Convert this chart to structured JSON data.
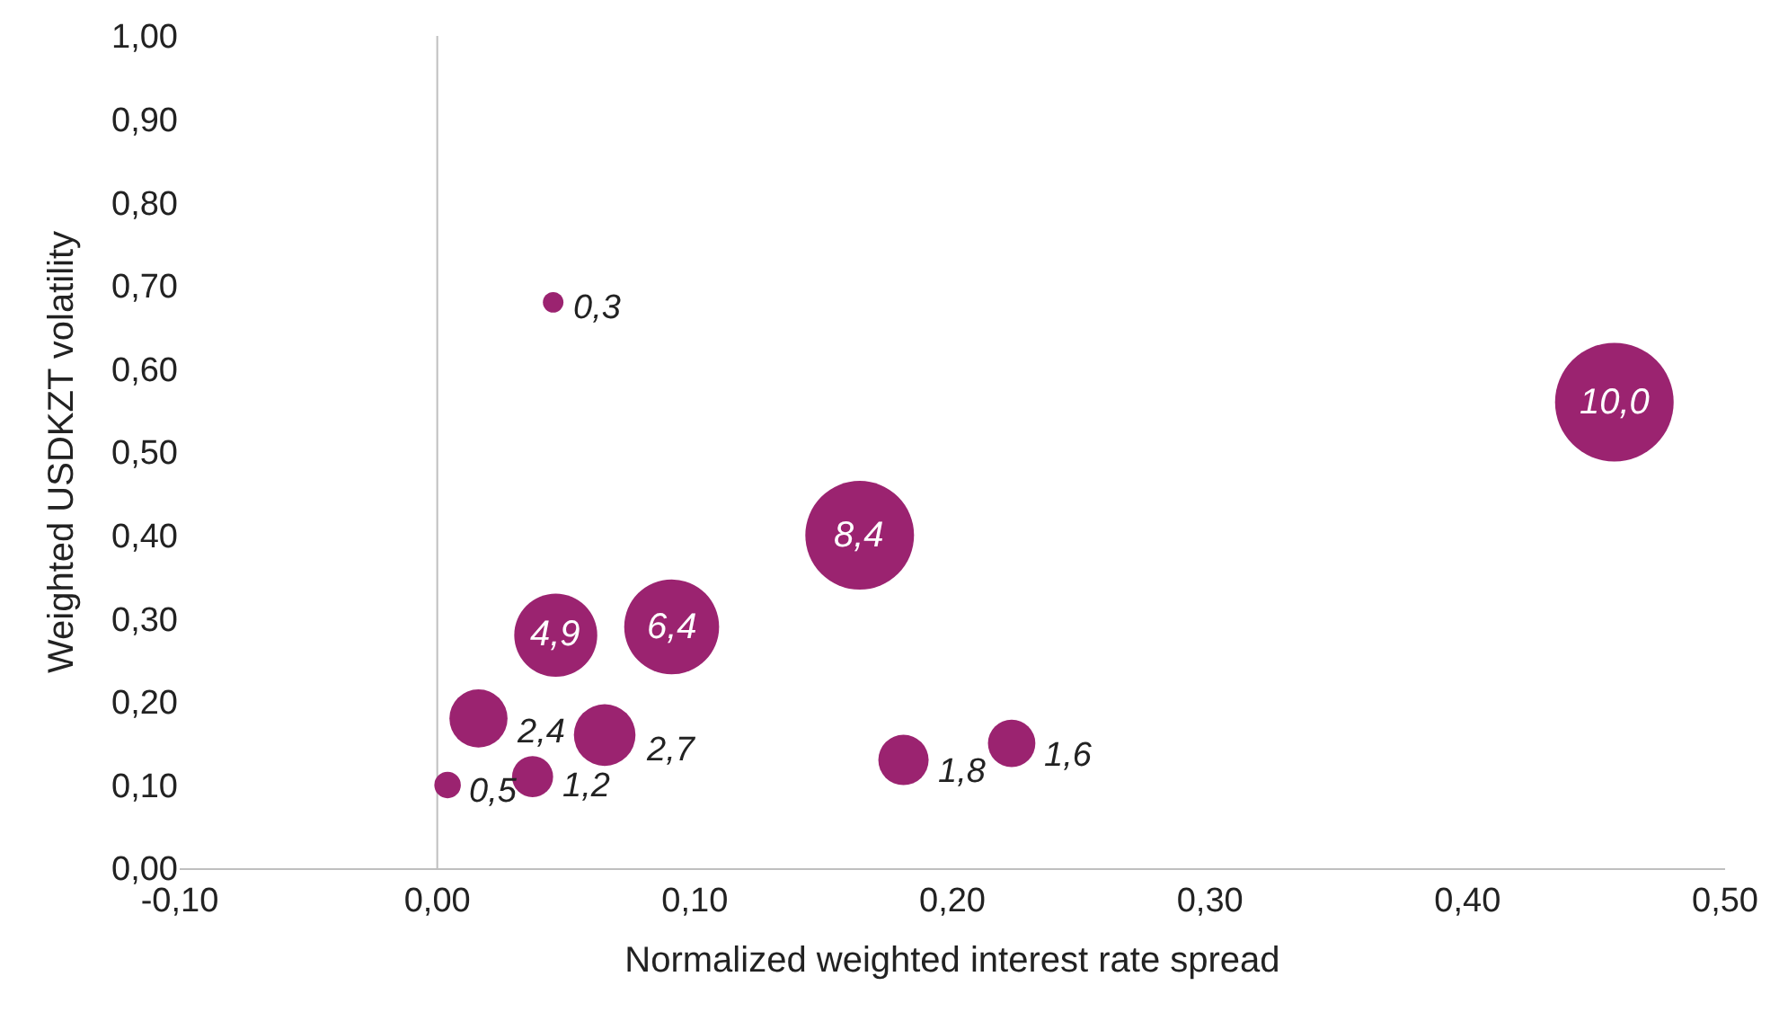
{
  "chart_data": {
    "type": "bubble",
    "xlabel": "Normalized weighted interest rate spread",
    "ylabel": "Weighted USDKZT volatility",
    "x": [
      0.004,
      0.037,
      0.016,
      0.065,
      0.045,
      0.046,
      0.091,
      0.164,
      0.181,
      0.223,
      0.457
    ],
    "series": [
      {
        "color": "#9b2370",
        "values": [
          0.1,
          0.11,
          0.18,
          0.16,
          0.68,
          0.28,
          0.29,
          0.4,
          0.13,
          0.15,
          0.56
        ],
        "sizes": [
          0.05,
          0.12,
          0.24,
          0.27,
          0.03,
          0.49,
          0.64,
          0.84,
          0.18,
          0.16,
          1
        ]
      }
    ],
    "annotations": [
      {
        "text": "0,5",
        "x": 0.004,
        "y": 0.1
      },
      {
        "text": "1,2",
        "x": 0.037,
        "y": 0.11
      },
      {
        "text": "2,4",
        "x": 0.016,
        "y": 0.18
      },
      {
        "text": "2,7",
        "x": 0.065,
        "y": 0.16
      },
      {
        "text": "0,3",
        "x": 0.045,
        "y": 0.68
      },
      {
        "text": "4,9",
        "x": 0.046,
        "y": 0.28
      },
      {
        "text": "6,4",
        "x": 0.091,
        "y": 0.29
      },
      {
        "text": "8,4",
        "x": 0.164,
        "y": 0.4
      },
      {
        "text": "1,8",
        "x": 0.181,
        "y": 0.13
      },
      {
        "text": "1,6",
        "x": 0.223,
        "y": 0.15
      },
      {
        "text": "10,0",
        "x": 0.457,
        "y": 0.56
      }
    ],
    "xlim": [
      -0.1,
      0.5
    ],
    "xticks": [
      {
        "value": -0.1,
        "label": "-0,10"
      },
      {
        "value": 0,
        "label": "0,00"
      },
      {
        "value": 0.1,
        "label": "0,10"
      },
      {
        "value": 0.2,
        "label": "0,20"
      },
      {
        "value": 0.3,
        "label": "0,30"
      },
      {
        "value": 0.4,
        "label": "0,40"
      },
      {
        "value": 0.5,
        "label": "0,50"
      }
    ],
    "ylim": [
      0,
      1
    ],
    "yticks": [
      {
        "value": 0,
        "label": "0,00"
      },
      {
        "value": 0.1,
        "label": "0,10"
      },
      {
        "value": 0.2,
        "label": "0,20"
      },
      {
        "value": 0.3,
        "label": "0,30"
      },
      {
        "value": 0.4,
        "label": "0,40"
      },
      {
        "value": 0.5,
        "label": "0,50"
      },
      {
        "value": 0.6,
        "label": "0,60"
      },
      {
        "value": 0.7,
        "label": "0,70"
      },
      {
        "value": 0.8,
        "label": "0,80"
      },
      {
        "value": 0.9,
        "label": "0,90"
      },
      {
        "value": 1.0,
        "label": "1,00"
      }
    ],
    "ref_lines": [
      {
        "axis": "x",
        "value": 0,
        "color": "#bfbfbf"
      }
    ],
    "grid": false,
    "legend": false,
    "marker": "circle"
  }
}
